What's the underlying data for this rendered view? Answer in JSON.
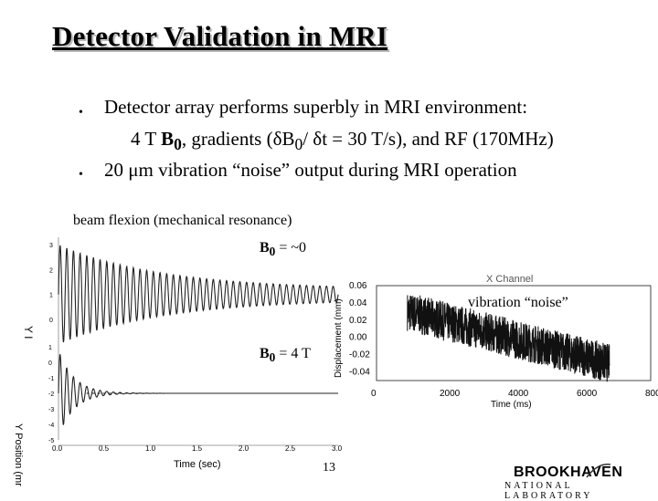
{
  "slide": {
    "title": "Detector Validation in MRI",
    "bullets": [
      {
        "marker": "•",
        "line1": "Detector array performs superbly in MRI environment:",
        "line2_pre": "4 T ",
        "line2_b": "B",
        "line2_sub": "0",
        "line2_post": ", gradients (δB",
        "line2_sub2": "0",
        "line2_end": "/ δt = 30 T/s), and RF (170MHz)"
      },
      {
        "marker": "•",
        "line1": "20 μm vibration “noise” output during MRI operation"
      }
    ],
    "page_number": "13",
    "logo": {
      "main": "BROOKHAVEN",
      "sub": "NATIONAL LABORATORY"
    }
  },
  "left_plot": {
    "heading": "beam flexion (mechanical resonance)",
    "top_label_b": "B",
    "top_label_sub": "0",
    "top_label_rest": " = ~0",
    "bottom_label_b": "B",
    "bottom_label_sub": "0",
    "bottom_label_rest": " = 4 T",
    "ylabel_top": "Y I",
    "ylabel_bottom": "Y Position (mr",
    "xlabel": "Time (sec)",
    "x_ticks": [
      "0.0",
      "0.5",
      "1.0",
      "1.5",
      "2.0",
      "2.5",
      "3.0"
    ],
    "y_ticks_top": [
      "3",
      "2",
      "1",
      "0"
    ],
    "y_ticks_bottom": [
      "1",
      "0",
      "-1",
      "-2",
      "-3",
      "-4",
      "-5"
    ]
  },
  "right_plot": {
    "title": "X Channel",
    "annotation": "vibration “noise”",
    "ylabel": "Displacement (mm)",
    "xlabel": "Time (ms)",
    "x_ticks": [
      "0",
      "2000",
      "4000",
      "6000",
      "800"
    ],
    "y_ticks": [
      "0.06",
      "0.04",
      "0.02",
      "0.00",
      "-0.02",
      "-0.04"
    ]
  },
  "chart_data": [
    {
      "type": "line",
      "title": "",
      "xlabel": "Time (sec)",
      "ylabel": "Y Position (mr",
      "xlim": [
        0,
        3.0
      ],
      "ylim": [
        0,
        3
      ],
      "series": [
        {
          "name": "B0 = ~0",
          "description": "decaying oscillation",
          "amplitude_start": 2.0,
          "amplitude_end": 0.2,
          "center": 1.0
        }
      ]
    },
    {
      "type": "line",
      "title": "",
      "xlabel": "Time (sec)",
      "ylabel": "Y Position (mr",
      "xlim": [
        0,
        3.0
      ],
      "ylim": [
        -5,
        1
      ],
      "series": [
        {
          "name": "B0 = 4 T",
          "description": "rapidly damped oscillation",
          "settle_value": -2
        }
      ]
    },
    {
      "type": "line",
      "title": "X Channel",
      "xlabel": "Time (ms)",
      "ylabel": "Displacement (mm)",
      "xlim": [
        0,
        8000
      ],
      "ylim": [
        -0.05,
        0.06
      ],
      "series": [
        {
          "name": "",
          "description": "noisy signal drifting downward",
          "start": 0.03,
          "end": -0.03
        }
      ]
    }
  ],
  "colors": {
    "text": "#000000",
    "trace": "#222222",
    "axis": "#555555"
  }
}
